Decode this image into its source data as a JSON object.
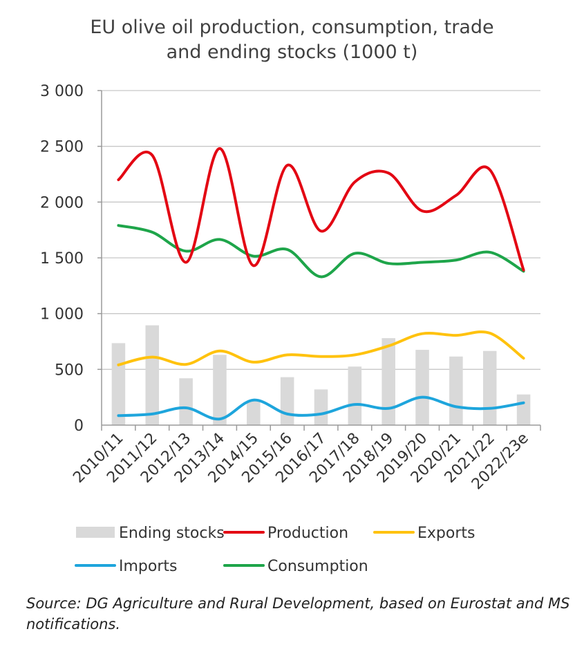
{
  "chart_data": {
    "type": "bar+line",
    "title_line1": "EU olive oil production, consumption, trade",
    "title_line2": "and ending stocks (1000 t)",
    "categories": [
      "2010/11",
      "2011/12",
      "2012/13",
      "2013/14",
      "2014/15",
      "2015/16",
      "2016/17",
      "2017/18",
      "2018/19",
      "2019/20",
      "2020/21",
      "2021/22",
      "2022/23e"
    ],
    "ylim": [
      0,
      3000
    ],
    "yticks": [
      0,
      500,
      1000,
      1500,
      2000,
      2500,
      3000
    ],
    "ytick_labels": [
      "0",
      "500",
      "1 000",
      "1 500",
      "2 000",
      "2 500",
      "3 000"
    ],
    "grid": true,
    "legend_position": "bottom",
    "bars": {
      "name": "Ending stocks",
      "color": "#d9d9d9",
      "values": [
        735,
        895,
        420,
        630,
        220,
        430,
        320,
        525,
        780,
        675,
        615,
        665,
        275
      ]
    },
    "series": [
      {
        "name": "Production",
        "color": "#e30613",
        "values": [
          2200,
          2420,
          1460,
          2480,
          1430,
          2330,
          1740,
          2180,
          2260,
          1920,
          2060,
          2290,
          1390
        ]
      },
      {
        "name": "Exports",
        "color": "#ffc20e",
        "values": [
          540,
          610,
          545,
          665,
          565,
          630,
          615,
          630,
          710,
          820,
          805,
          825,
          600
        ]
      },
      {
        "name": "Imports",
        "color": "#1ea5dc",
        "values": [
          85,
          100,
          155,
          55,
          225,
          100,
          100,
          185,
          150,
          250,
          165,
          150,
          200
        ]
      },
      {
        "name": "Consumption",
        "color": "#1ea54a",
        "values": [
          1790,
          1730,
          1560,
          1665,
          1515,
          1575,
          1330,
          1540,
          1450,
          1460,
          1480,
          1550,
          1380
        ]
      }
    ],
    "legend": [
      {
        "key": "bars",
        "label": "Ending stocks"
      },
      {
        "key": "Production",
        "label": "Production"
      },
      {
        "key": "Exports",
        "label": "Exports"
      },
      {
        "key": "Imports",
        "label": "Imports"
      },
      {
        "key": "Consumption",
        "label": "Consumption"
      }
    ]
  },
  "source_note": "Source: DG Agriculture and Rural Development, based on Eurostat and MS notifications."
}
